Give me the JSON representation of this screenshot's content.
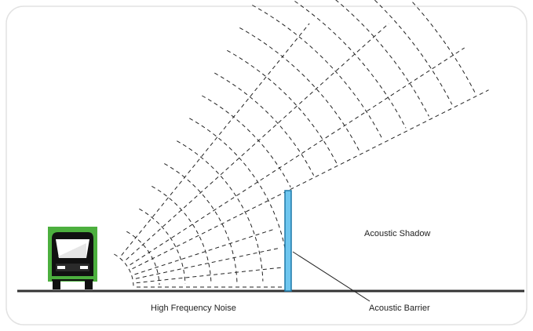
{
  "labels": {
    "shadow": "Acoustic Shadow",
    "noise": "High Frequency Noise",
    "barrier": "Acoustic Barrier"
  },
  "colors": {
    "background": "#ffffff",
    "frame_border": "#e2e2e2",
    "ground": "#333333",
    "barrier_fill": "#6ec6ef",
    "barrier_stroke": "#1d78a8",
    "truck_cargo": "#4caf3e",
    "truck_cab": "#111111",
    "wave": "#222222"
  }
}
